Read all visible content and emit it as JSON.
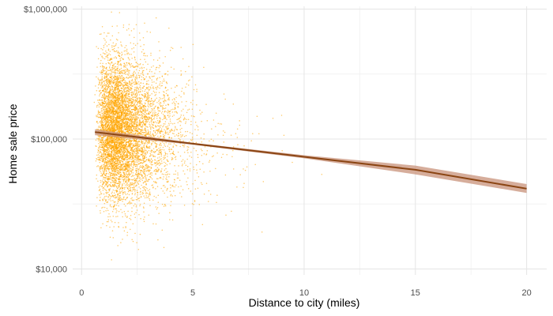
{
  "chart_data": {
    "type": "scatter",
    "title": "",
    "xlabel": "Distance to city (miles)",
    "ylabel": "Home sale price",
    "xlim": [
      -0.4,
      20.9
    ],
    "ylim": [
      9000,
      1050000
    ],
    "y_scale": "log10",
    "x_ticks": [
      {
        "value": 0,
        "label": "0"
      },
      {
        "value": 5,
        "label": "5"
      },
      {
        "value": 10,
        "label": "10"
      },
      {
        "value": 15,
        "label": "15"
      },
      {
        "value": 20,
        "label": "20"
      }
    ],
    "y_ticks": [
      {
        "value": 10000,
        "label": "$10,000"
      },
      {
        "value": 100000,
        "label": "$100,000"
      },
      {
        "value": 1000000,
        "label": "$1,000,000"
      }
    ],
    "grid": true,
    "colors": {
      "points": "#FFA500",
      "fit_line": "#8B4513",
      "fit_band": "#C8917A",
      "grid_major": "#e5e5e5",
      "grid_minor": "#f2f2f2",
      "tick_text": "#4d4d4d"
    },
    "point_cloud": {
      "n_points": 7000,
      "x_range": [
        0.5,
        20
      ],
      "x_mode": 3.5,
      "y_range": [
        10000,
        1000000
      ]
    },
    "fit_line": {
      "method": "linear on log10(price)",
      "x": [
        0.6,
        5,
        10,
        15,
        20
      ],
      "y": [
        113000,
        92000,
        73000,
        58000,
        41500
      ],
      "band_lower": [
        107000,
        90500,
        71000,
        53500,
        38500
      ],
      "band_upper": [
        119000,
        93500,
        75000,
        62500,
        45000
      ]
    }
  }
}
